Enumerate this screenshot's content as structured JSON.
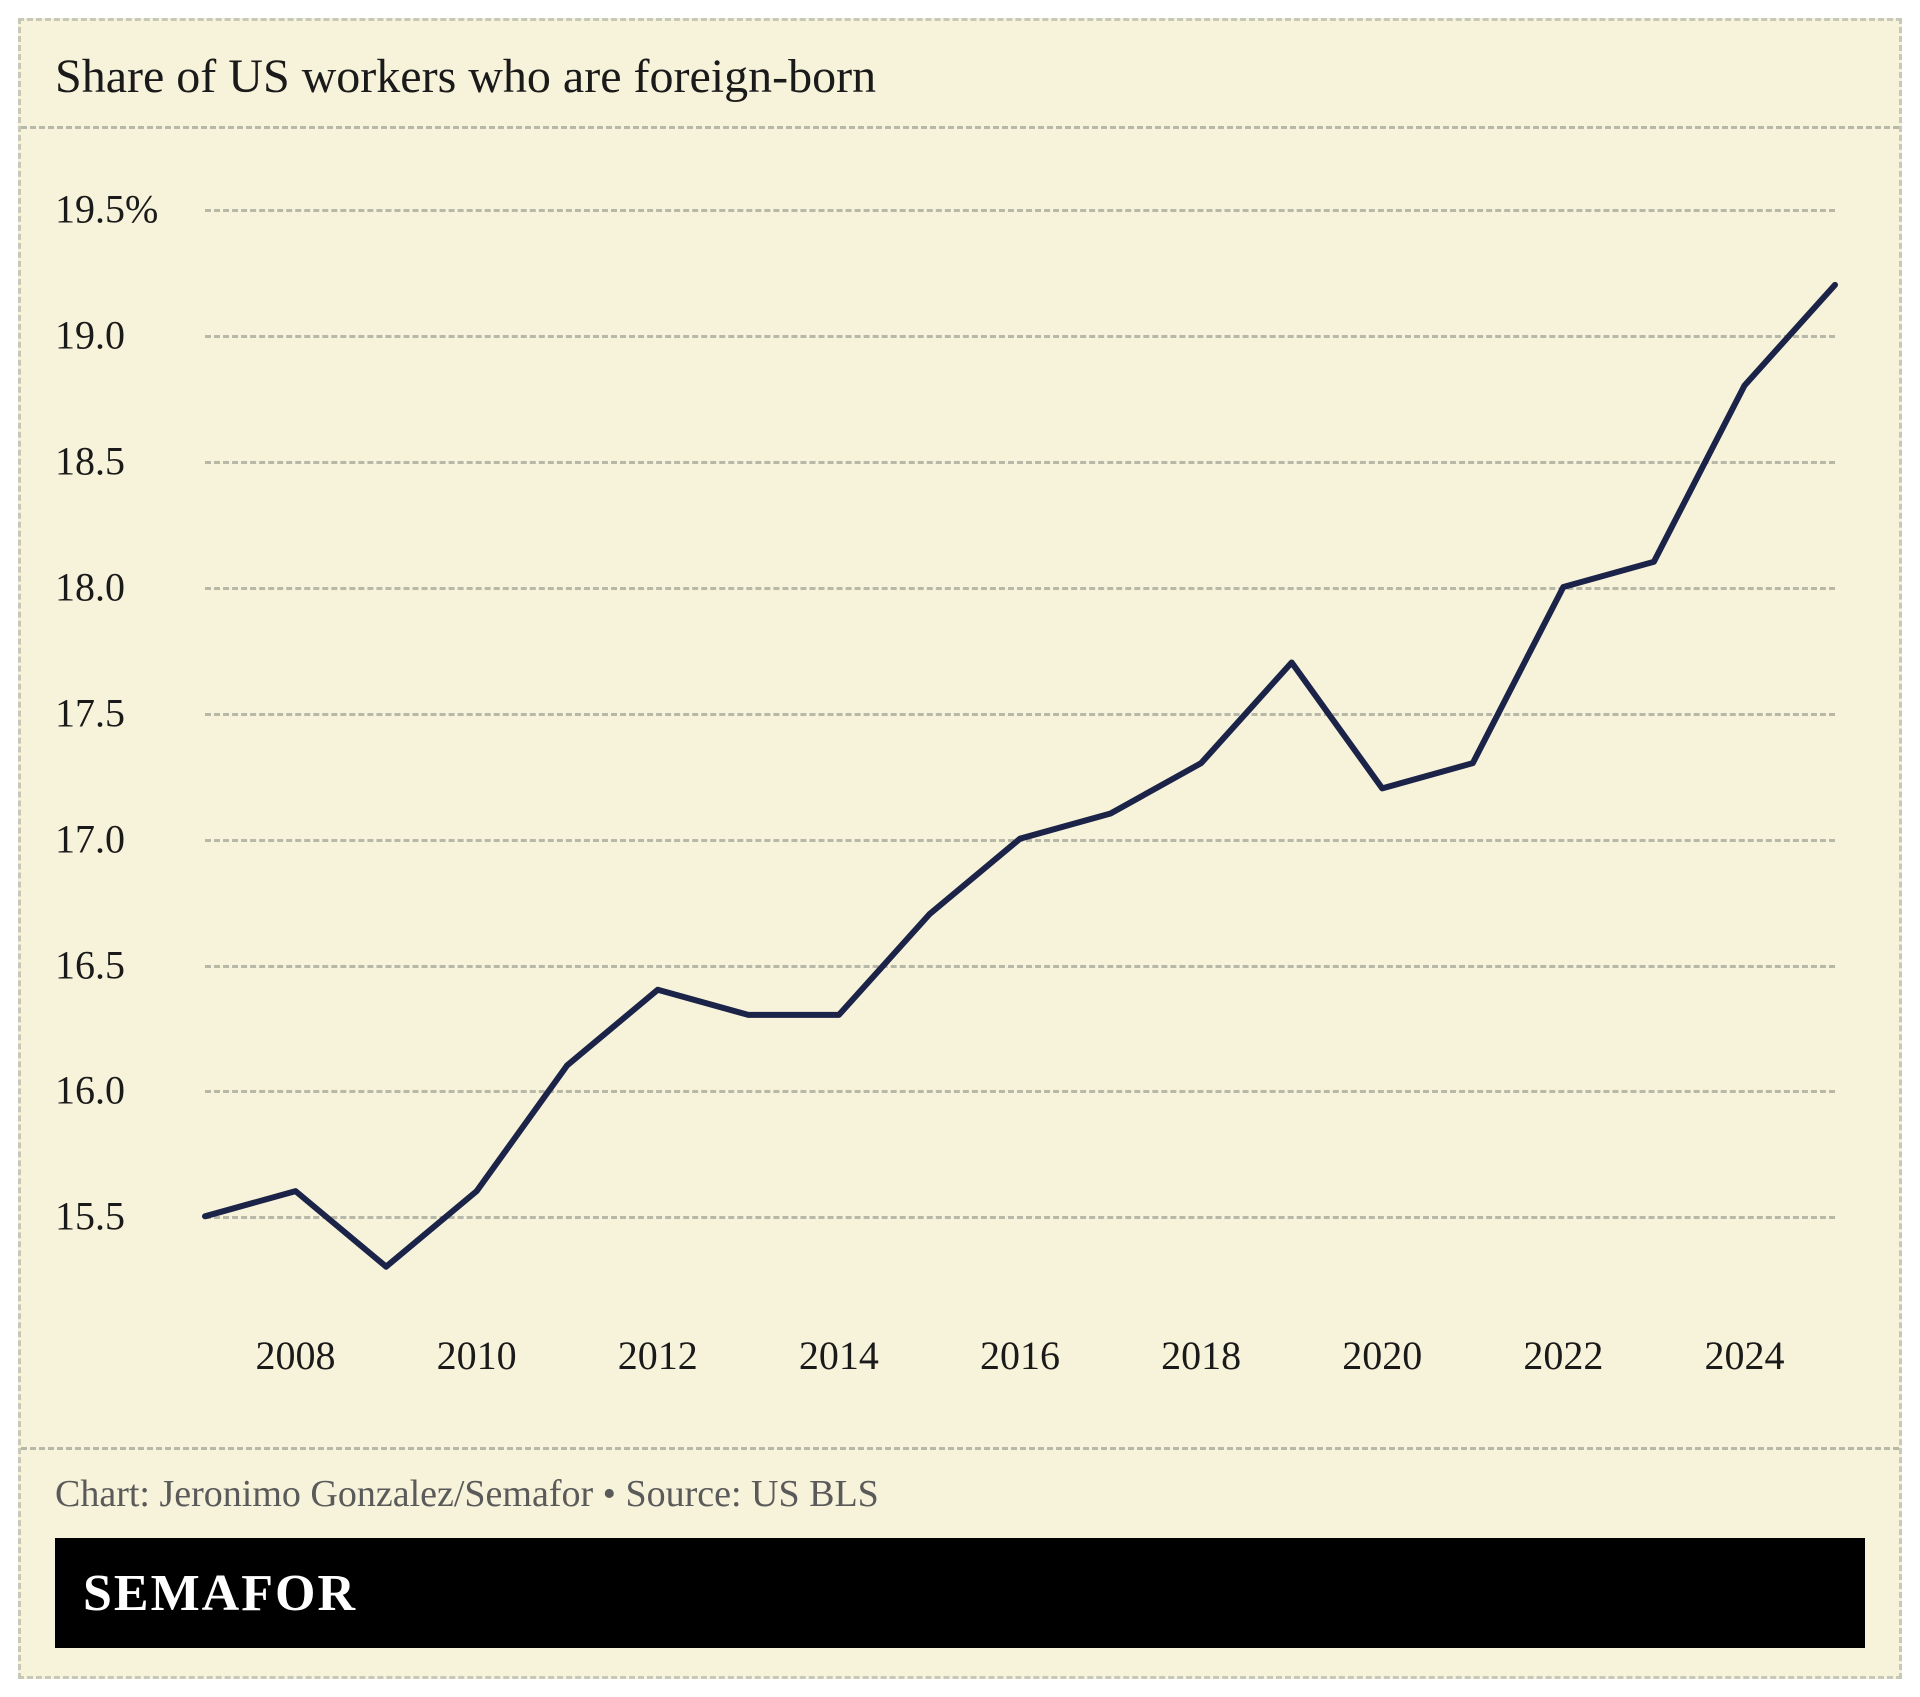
{
  "chart": {
    "type": "line",
    "title": "Share of US workers who are foreign-born",
    "title_fontsize": 48,
    "title_color": "#1a1a1a",
    "background_color": "#f7f3da",
    "border_color": "#c8c8b8",
    "grid_color": "#b8b8a8",
    "line_color": "#1b2348",
    "line_width": 6,
    "label_fontsize": 40,
    "label_color": "#1a1a1a",
    "y": {
      "min": 15.1,
      "max": 19.7,
      "ticks": [
        15.5,
        16.0,
        16.5,
        17.0,
        17.5,
        18.0,
        18.5,
        19.0,
        19.5
      ],
      "tick_labels": [
        "15.5",
        "16.0",
        "16.5",
        "17.0",
        "17.5",
        "18.0",
        "18.5",
        "19.0",
        "19.5%"
      ]
    },
    "x": {
      "min": 2007,
      "max": 2025,
      "ticks": [
        2008,
        2010,
        2012,
        2014,
        2016,
        2018,
        2020,
        2022,
        2024
      ],
      "tick_labels": [
        "2008",
        "2010",
        "2012",
        "2014",
        "2016",
        "2018",
        "2020",
        "2022",
        "2024"
      ]
    },
    "series": {
      "years": [
        2007,
        2008,
        2009,
        2010,
        2011,
        2012,
        2013,
        2014,
        2015,
        2016,
        2017,
        2018,
        2019,
        2020,
        2021,
        2022,
        2023,
        2024,
        2025
      ],
      "values": [
        15.5,
        15.6,
        15.3,
        15.6,
        16.1,
        16.4,
        16.3,
        16.3,
        16.7,
        17.0,
        17.1,
        17.3,
        17.7,
        17.2,
        17.3,
        18.0,
        18.1,
        18.8,
        19.2
      ]
    }
  },
  "footer": {
    "source_text": "Chart: Jeronimo Gonzalez/Semafor • Source: US BLS",
    "source_fontsize": 38,
    "source_color": "#5a5a5a",
    "brand": "SEMAFOR",
    "brand_bg": "#000000",
    "brand_fg": "#ffffff",
    "brand_fontsize": 52
  }
}
